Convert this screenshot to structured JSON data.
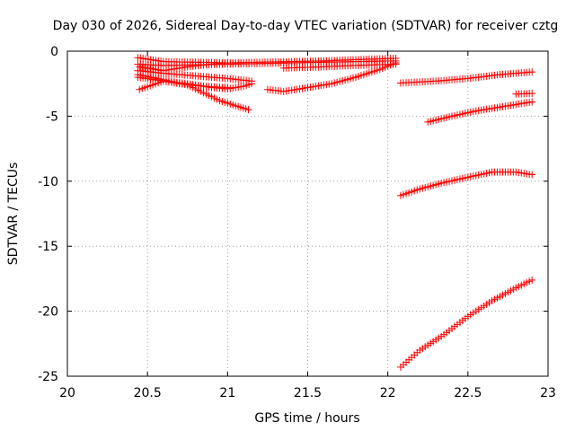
{
  "chart_data": {
    "type": "scatter",
    "title": "Day 030 of 2026, Sidereal Day-to-day VTEC variation (SDTVAR) for receiver cztg",
    "xlabel": "GPS time / hours",
    "ylabel": "SDTVAR / TECUs",
    "xlim": [
      20,
      23
    ],
    "ylim": [
      -25,
      0
    ],
    "xticks": [
      20,
      20.5,
      21,
      21.5,
      22,
      22.5,
      23
    ],
    "xtick_labels": [
      "20",
      "20.5",
      "21",
      "21.5",
      "22",
      "22.5",
      "23"
    ],
    "yticks": [
      0,
      -5,
      -10,
      -15,
      -20,
      -25
    ],
    "ytick_labels": [
      "0",
      "-5",
      "-10",
      "-15",
      "-20",
      "-25"
    ],
    "grid": true,
    "marker": "plus",
    "color": "#ff0000",
    "series": [
      {
        "name": "s1",
        "x": [
          20.44,
          20.6,
          20.8,
          21.0,
          21.2,
          21.4,
          21.6,
          21.8,
          22.05
        ],
        "y": [
          -0.5,
          -0.8,
          -0.85,
          -0.9,
          -0.85,
          -0.8,
          -0.75,
          -0.65,
          -0.55
        ]
      },
      {
        "name": "s2",
        "x": [
          20.44,
          20.6,
          20.8,
          21.0,
          21.2,
          21.4,
          21.6,
          21.8,
          22.05
        ],
        "y": [
          -1.0,
          -1.1,
          -1.05,
          -1.0,
          -0.95,
          -0.9,
          -0.85,
          -0.8,
          -0.75
        ]
      },
      {
        "name": "s3",
        "x": [
          21.35,
          21.6,
          21.8,
          22.05
        ],
        "y": [
          -1.3,
          -1.2,
          -1.1,
          -1.0
        ]
      },
      {
        "name": "s4",
        "x": [
          20.44,
          20.6,
          20.8,
          21.0,
          21.15
        ],
        "y": [
          -1.5,
          -1.7,
          -1.9,
          -2.1,
          -2.3
        ]
      },
      {
        "name": "s5",
        "x": [
          20.44,
          20.55,
          20.7,
          20.85,
          21.0
        ],
        "y": [
          -2.0,
          -2.2,
          -2.5,
          -2.7,
          -2.8
        ]
      },
      {
        "name": "s6",
        "x": [
          20.44,
          20.6,
          20.75,
          20.85,
          20.95,
          21.05,
          21.13
        ],
        "y": [
          -1.8,
          -2.2,
          -2.6,
          -3.2,
          -3.8,
          -4.2,
          -4.5
        ]
      },
      {
        "name": "s7",
        "x": [
          20.45,
          20.6,
          20.75,
          20.9,
          21.0,
          21.1,
          21.15
        ],
        "y": [
          -2.95,
          -2.3,
          -2.5,
          -2.8,
          -2.9,
          -2.7,
          -2.5
        ]
      },
      {
        "name": "s8",
        "x": [
          20.45,
          20.6,
          20.75,
          20.9,
          21.0
        ],
        "y": [
          -1.2,
          -1.5,
          -1.2,
          -1.0,
          -0.9
        ]
      },
      {
        "name": "s9",
        "x": [
          21.25,
          21.35,
          21.5,
          21.65,
          21.8,
          21.95,
          22.05
        ],
        "y": [
          -2.95,
          -3.1,
          -2.8,
          -2.5,
          -2.0,
          -1.4,
          -0.9
        ]
      },
      {
        "name": "s10",
        "x": [
          22.08,
          22.3,
          22.5,
          22.7,
          22.9
        ],
        "y": [
          -2.45,
          -2.3,
          -2.1,
          -1.8,
          -1.6
        ]
      },
      {
        "name": "s11",
        "x": [
          22.8,
          22.9
        ],
        "y": [
          -3.3,
          -3.25
        ]
      },
      {
        "name": "s12",
        "x": [
          22.25,
          22.4,
          22.55,
          22.7,
          22.9
        ],
        "y": [
          -5.45,
          -5.0,
          -4.6,
          -4.3,
          -3.9
        ]
      },
      {
        "name": "s13",
        "x": [
          22.08,
          22.2,
          22.35,
          22.5,
          22.65,
          22.8,
          22.9
        ],
        "y": [
          -11.1,
          -10.6,
          -10.1,
          -9.7,
          -9.3,
          -9.3,
          -9.5
        ]
      },
      {
        "name": "s14",
        "x": [
          22.08,
          22.2,
          22.35,
          22.5,
          22.65,
          22.8,
          22.9
        ],
        "y": [
          -24.3,
          -23.0,
          -21.8,
          -20.4,
          -19.2,
          -18.2,
          -17.6
        ]
      }
    ]
  }
}
